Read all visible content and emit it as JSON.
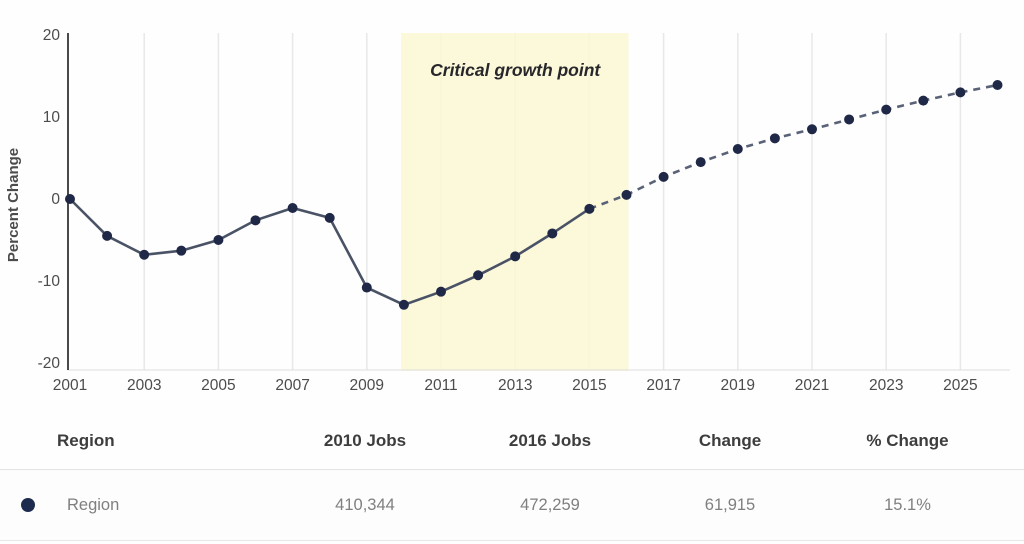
{
  "chart_data": {
    "type": "line",
    "title": "",
    "xlabel": "",
    "ylabel": "Percent Change",
    "x": [
      2001,
      2002,
      2003,
      2004,
      2005,
      2006,
      2007,
      2008,
      2009,
      2010,
      2011,
      2012,
      2013,
      2014,
      2015,
      2016,
      2017,
      2018,
      2019,
      2020,
      2021,
      2022,
      2023,
      2024,
      2025,
      2026
    ],
    "series": [
      {
        "name": "Region",
        "values": [
          0,
          -4.5,
          -6.8,
          -6.3,
          -5.0,
          -2.6,
          -1.1,
          -2.3,
          -10.8,
          -12.9,
          -11.3,
          -9.3,
          -7.0,
          -4.2,
          -1.2,
          0.5,
          2.7,
          4.5,
          6.1,
          7.4,
          8.5,
          9.7,
          10.9,
          12.0,
          13.0,
          13.9
        ],
        "solid_until_year": 2015,
        "dashed_after_year": 2015
      }
    ],
    "x_tick_years": [
      2001,
      2003,
      2005,
      2007,
      2009,
      2011,
      2013,
      2015,
      2017,
      2019,
      2021,
      2023,
      2025
    ],
    "y_ticks": [
      20,
      10,
      0,
      -10,
      -20
    ],
    "ylim": [
      -20,
      20
    ],
    "xlim": [
      2001,
      2026
    ],
    "grid": "vertical-only",
    "legend_position": "none",
    "highlight_band": {
      "from_year": 2010,
      "to_year": 2016,
      "label": "Critical growth point",
      "color": "#fbf7d2"
    },
    "colors": {
      "point": "#1f2846",
      "line_solid": "#4a5366",
      "line_dashed": "#5a6278",
      "axis": "#4a4a4a",
      "tick_label": "#4c4c4c",
      "gridline": "#e8e8e8",
      "annotation_text": "#26262b",
      "baseline": "#dedede"
    }
  },
  "table": {
    "headers": [
      "Region",
      "2010 Jobs",
      "2016 Jobs",
      "Change",
      "% Change"
    ],
    "rows": [
      {
        "legend_color": "#1d2b4f",
        "region": "Region",
        "jobs_2010": "410,344",
        "jobs_2016": "472,259",
        "change": "61,915",
        "pct_change": "15.1%"
      }
    ]
  }
}
